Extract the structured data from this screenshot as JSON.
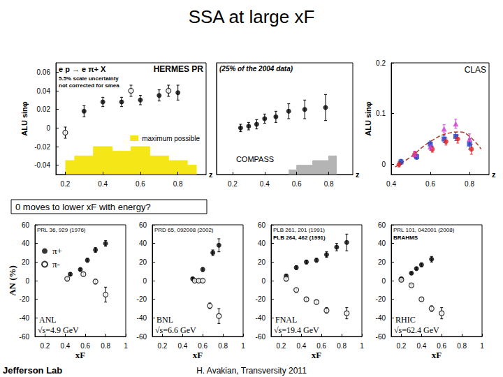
{
  "title": "SSA at large xF",
  "note": "0 moves to lower xF with energy?",
  "footer": [
    "Jefferson Lab",
    "H. Avakian, Transversity 2011"
  ],
  "chart_data": [
    {
      "type": "scatter",
      "title": "HERMES PR",
      "subtitle": "e p → e π+ X",
      "annotations": [
        "5.5% scale uncertainty",
        "not corrected for smea"
      ],
      "x_label": "z",
      "y_label": "ALU sinφ",
      "xlim": [
        0.15,
        0.95
      ],
      "xticks": [
        0.2,
        0.4,
        0.6,
        0.8
      ],
      "ylim": [
        -0.05,
        0.07
      ],
      "yticks": [
        -0.04,
        -0.02,
        0,
        0.02,
        0.04,
        0.06
      ],
      "grid": false,
      "legend": "lower right",
      "series": [
        {
          "type": "area",
          "name": "maximum possible",
          "color": "#f5e617",
          "x": [
            0.2,
            0.3,
            0.4,
            0.5,
            0.6,
            0.7,
            0.8,
            0.9
          ],
          "values": [
            -0.035,
            -0.03,
            -0.02,
            -0.025,
            -0.02,
            -0.03,
            -0.035,
            -0.04
          ]
        },
        {
          "type": "scatter",
          "color": "#000000",
          "marker": "circle",
          "x": [
            0.3,
            0.4,
            0.5,
            0.6,
            0.7,
            0.8
          ],
          "values": [
            0.018,
            0.028,
            0.028,
            0.03,
            0.035,
            0.038
          ],
          "errors": [
            0.006,
            0.005,
            0.005,
            0.005,
            0.006,
            0.008
          ]
        },
        {
          "type": "scatter",
          "color": "#000000",
          "marker": "open_circle",
          "x": [
            0.2,
            0.55,
            0.75
          ],
          "values": [
            -0.005,
            0.04,
            0.04
          ],
          "errors": [
            0.006,
            0.006,
            0.006
          ]
        }
      ]
    },
    {
      "type": "scatter",
      "title": "COMPASS",
      "annotations": [
        "(25% of the 2004 data)"
      ],
      "x_label": "z",
      "xlim": [
        0.1,
        0.95
      ],
      "xticks": [
        0.2,
        0.4,
        0.6,
        0.8
      ],
      "ylim": [
        -0.04,
        0.08
      ],
      "tick_labels": "x",
      "grid": false,
      "series": [
        {
          "type": "area",
          "color": "#b4b4b4",
          "x": [
            0.55,
            0.65,
            0.75,
            0.85
          ],
          "values": [
            -0.035,
            -0.03,
            -0.025,
            -0.02
          ]
        },
        {
          "type": "scatter",
          "color": "#000000",
          "marker": "circle",
          "x": [
            0.25,
            0.3,
            0.35,
            0.4,
            0.47,
            0.55,
            0.65,
            0.78
          ],
          "values": [
            0.01,
            0.012,
            0.014,
            0.02,
            0.022,
            0.028,
            0.03,
            0.032
          ],
          "errors": [
            0.004,
            0.004,
            0.005,
            0.005,
            0.006,
            0.008,
            0.01,
            0.014
          ]
        }
      ]
    },
    {
      "type": "scatter",
      "title": "CLAS",
      "x_label": "z",
      "y_label": "ALU sinφ",
      "xlim": [
        0.4,
        0.9
      ],
      "xticks": [
        0.4,
        0.6,
        0.8
      ],
      "ylim": [
        -0.02,
        0.2
      ],
      "yticks": [
        0,
        0.1,
        0.2
      ],
      "grid": false,
      "series": [
        {
          "type": "line",
          "color": "#b03a2e",
          "line_style": "dashed",
          "x": [
            0.42,
            0.5,
            0.6,
            0.7,
            0.75,
            0.8,
            0.86
          ],
          "values": [
            -0.005,
            0.015,
            0.045,
            0.062,
            0.064,
            0.055,
            0.03
          ]
        },
        {
          "type": "scatter",
          "color": "#1f3fbf",
          "marker": "square",
          "x": [
            0.45,
            0.53,
            0.6,
            0.67,
            0.73,
            0.8
          ],
          "values": [
            0.005,
            0.015,
            0.04,
            0.05,
            0.055,
            0.04
          ],
          "errors": [
            0.005,
            0.005,
            0.006,
            0.007,
            0.008,
            0.01
          ]
        },
        {
          "type": "scatter",
          "color": "#e02020",
          "marker": "circle",
          "x": [
            0.44,
            0.52,
            0.61,
            0.68,
            0.74,
            0.81
          ],
          "values": [
            0.0,
            0.02,
            0.03,
            0.045,
            0.05,
            0.03
          ],
          "errors": [
            0.005,
            0.005,
            0.006,
            0.007,
            0.008,
            0.01
          ]
        },
        {
          "type": "scatter",
          "color": "#d040d0",
          "marker": "triangle",
          "x": [
            0.52,
            0.6,
            0.67,
            0.73,
            0.8
          ],
          "values": [
            0.02,
            0.035,
            0.07,
            0.08,
            0.05
          ],
          "errors": [
            0.006,
            0.007,
            0.008,
            0.009,
            0.01
          ]
        }
      ]
    },
    {
      "type": "scatter",
      "title": "ANL",
      "subtitle": "√s=4.9 GeV",
      "annotations": [
        "PRL 36, 929 (1976)"
      ],
      "x_label": "xF",
      "y_label": "AN (%)",
      "xlim": [
        0.1,
        1
      ],
      "xticks": [
        0.2,
        0.4,
        0.6,
        0.8,
        1
      ],
      "ylim": [
        -60,
        60
      ],
      "yticks": [
        -60,
        -40,
        -20,
        0,
        20,
        40,
        60
      ],
      "grid": false,
      "legend": "upper left",
      "series": [
        {
          "name": "π+",
          "color": "#000000",
          "marker": "circle",
          "x": [
            0.45,
            0.55,
            0.62,
            0.7,
            0.8
          ],
          "values": [
            7,
            12,
            22,
            33,
            40
          ],
          "errors": [
            1.5,
            1.5,
            2,
            2.5,
            3
          ]
        },
        {
          "name": "π-",
          "color": "#000000",
          "marker": "open_circle",
          "x": [
            0.42,
            0.58,
            0.7,
            0.8
          ],
          "values": [
            2,
            7,
            -1,
            -15
          ],
          "errors": [
            1.5,
            2,
            2.5,
            8
          ]
        }
      ]
    },
    {
      "type": "scatter",
      "title": "BNL",
      "subtitle": "√s=6.6 GeV",
      "annotations": [
        "PRD 65, 092008 (2002)"
      ],
      "x_label": "xF",
      "xlim": [
        0.1,
        1
      ],
      "xticks": [
        0.2,
        0.4,
        0.6,
        0.8,
        1
      ],
      "ylim": [
        -60,
        60
      ],
      "yticks": [
        -60,
        -40,
        -20,
        0,
        20,
        40,
        60
      ],
      "grid": false,
      "series": [
        {
          "name": "π+",
          "color": "#000000",
          "marker": "circle",
          "x": [
            0.5,
            0.6,
            0.7,
            0.76
          ],
          "values": [
            2,
            12,
            30,
            38
          ],
          "errors": [
            1.5,
            2,
            3,
            7
          ]
        },
        {
          "name": "π-",
          "color": "#000000",
          "marker": "open_circle",
          "x": [
            0.52,
            0.56,
            0.6,
            0.67,
            0.76
          ],
          "values": [
            0,
            0,
            0,
            -27,
            -38
          ],
          "errors": [
            1.5,
            1.5,
            1.5,
            3,
            8
          ]
        }
      ]
    },
    {
      "type": "scatter",
      "title": "FNAL",
      "subtitle": "√s=19.4 GeV",
      "annotations": [
        "PLB 261, 201 (1991)",
        "PLB 264, 462 (1991)"
      ],
      "x_label": "xF",
      "xlim": [
        0.1,
        1
      ],
      "xticks": [
        0.2,
        0.4,
        0.6,
        0.8,
        1
      ],
      "ylim": [
        -60,
        60
      ],
      "yticks": [
        -60,
        -40,
        -20,
        0,
        20,
        40,
        60
      ],
      "grid": false,
      "series": [
        {
          "name": "π+",
          "color": "#000000",
          "marker": "circle",
          "x": [
            0.25,
            0.35,
            0.45,
            0.55,
            0.65,
            0.75,
            0.85
          ],
          "values": [
            5,
            14,
            20,
            22,
            28,
            36,
            41
          ],
          "errors": [
            2,
            2,
            2,
            2,
            3,
            4,
            9
          ]
        },
        {
          "name": "π-",
          "color": "#000000",
          "marker": "open_circle",
          "x": [
            0.25,
            0.35,
            0.45,
            0.55,
            0.65,
            0.85
          ],
          "values": [
            2,
            -10,
            -20,
            -23,
            -32,
            -35
          ],
          "errors": [
            2,
            2,
            2,
            2,
            3,
            6
          ]
        }
      ]
    },
    {
      "type": "scatter",
      "title": "RHIC",
      "subtitle": "√s=62.4 GeV",
      "annotations": [
        "PRL 101, 042001 (2008)",
        "BRAHMS"
      ],
      "x_label": "xF",
      "xlim": [
        0.1,
        1
      ],
      "xticks": [
        0.2,
        0.4,
        0.6,
        0.8,
        1
      ],
      "ylim": [
        -60,
        60
      ],
      "yticks": [
        -60,
        -40,
        -20,
        0,
        20,
        40,
        60
      ],
      "grid": false,
      "series": [
        {
          "name": "π+",
          "color": "#000000",
          "marker": "circle",
          "x": [
            0.2,
            0.3,
            0.35,
            0.4,
            0.5
          ],
          "values": [
            2,
            8,
            13,
            17,
            23
          ],
          "errors": [
            1,
            1,
            1.5,
            2,
            3
          ]
        },
        {
          "name": "π-",
          "color": "#000000",
          "marker": "open_circle",
          "x": [
            0.2,
            0.3,
            0.4,
            0.5,
            0.6
          ],
          "values": [
            1,
            -5,
            -20,
            -30,
            -35
          ],
          "errors": [
            1,
            1,
            2,
            3,
            6
          ]
        }
      ]
    }
  ]
}
